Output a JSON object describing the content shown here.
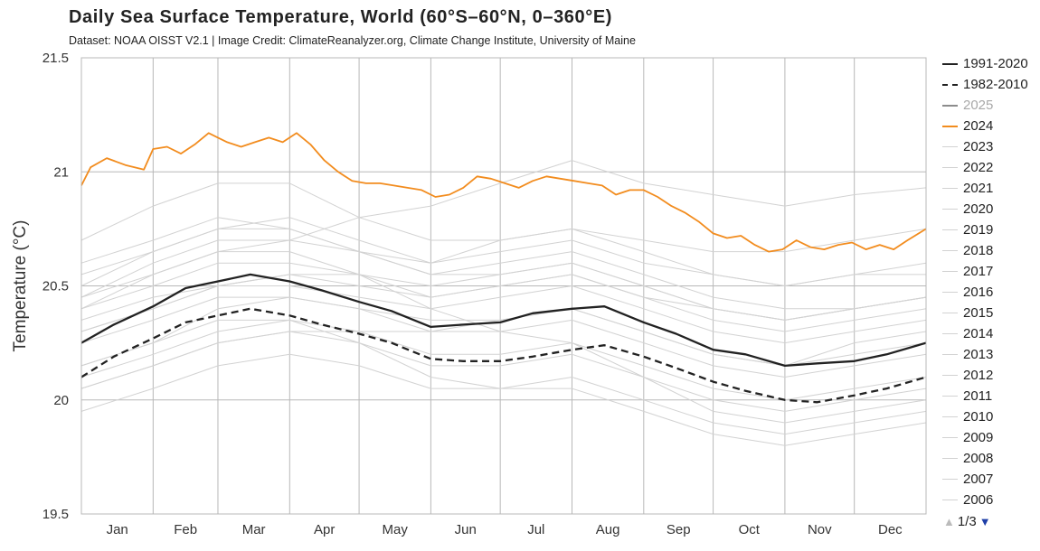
{
  "title": "Daily Sea Surface Temperature, World (60°S–60°N, 0–360°E)",
  "subtitle": "Dataset: NOAA OISST V2.1 | Image Credit: ClimateReanalyzer.org, Climate Change Institute, University of Maine",
  "colors": {
    "grid": "#b8b8b8",
    "axis_text": "#333333",
    "year_gray": "#d2d2d2",
    "mean": "#222222",
    "y2025": "#8c8c8c",
    "y2024": "#f28c1e",
    "pager_up": "#bbbbbb",
    "pager_down": "#1f3fa8"
  },
  "legend": {
    "items": [
      {
        "label": "1991-2020",
        "style": "solid",
        "color": "#222222"
      },
      {
        "label": "1982-2010",
        "style": "dashed",
        "color": "#222222"
      },
      {
        "label": "2025",
        "style": "solid",
        "color": "#8c8c8c",
        "text_color": "#a8a8a8"
      },
      {
        "label": "2024",
        "style": "solid",
        "color": "#f28c1e"
      },
      {
        "label": "2023",
        "style": "solid",
        "color": "#d2d2d2"
      },
      {
        "label": "2022",
        "style": "solid",
        "color": "#d2d2d2"
      },
      {
        "label": "2021",
        "style": "solid",
        "color": "#d2d2d2"
      },
      {
        "label": "2020",
        "style": "solid",
        "color": "#d2d2d2"
      },
      {
        "label": "2019",
        "style": "solid",
        "color": "#d2d2d2"
      },
      {
        "label": "2018",
        "style": "solid",
        "color": "#d2d2d2"
      },
      {
        "label": "2017",
        "style": "solid",
        "color": "#d2d2d2"
      },
      {
        "label": "2016",
        "style": "solid",
        "color": "#d2d2d2"
      },
      {
        "label": "2015",
        "style": "solid",
        "color": "#d2d2d2"
      },
      {
        "label": "2014",
        "style": "solid",
        "color": "#d2d2d2"
      },
      {
        "label": "2013",
        "style": "solid",
        "color": "#d2d2d2"
      },
      {
        "label": "2012",
        "style": "solid",
        "color": "#d2d2d2"
      },
      {
        "label": "2011",
        "style": "solid",
        "color": "#d2d2d2"
      },
      {
        "label": "2010",
        "style": "solid",
        "color": "#d2d2d2"
      },
      {
        "label": "2009",
        "style": "solid",
        "color": "#d2d2d2"
      },
      {
        "label": "2008",
        "style": "solid",
        "color": "#d2d2d2"
      },
      {
        "label": "2007",
        "style": "solid",
        "color": "#d2d2d2"
      },
      {
        "label": "2006",
        "style": "solid",
        "color": "#d2d2d2"
      }
    ],
    "pager": {
      "text": "1/3",
      "up": "▲",
      "down": "▼"
    }
  },
  "chart_data": {
    "type": "line",
    "ylabel": "Temperature (°C)",
    "xlabel": "",
    "ylim": [
      19.5,
      21.5
    ],
    "yticks": [
      19.5,
      20,
      20.5,
      21,
      21.5
    ],
    "xlim": [
      1,
      366
    ],
    "months": [
      "Jan",
      "Feb",
      "Mar",
      "Apr",
      "May",
      "Jun",
      "Jul",
      "Aug",
      "Sep",
      "Oct",
      "Nov",
      "Dec"
    ],
    "month_starts": [
      1,
      32,
      60,
      91,
      121,
      152,
      182,
      213,
      244,
      274,
      305,
      335
    ],
    "grid": true,
    "legend_position": "right",
    "series": [
      {
        "name": "1991-2020",
        "style": "solid",
        "color": "#222222",
        "x": [
          1,
          15,
          32,
          46,
          60,
          74,
          91,
          105,
          121,
          135,
          152,
          166,
          182,
          196,
          213,
          227,
          244,
          258,
          274,
          288,
          305,
          319,
          335,
          349,
          366
        ],
        "y": [
          20.25,
          20.33,
          20.41,
          20.49,
          20.52,
          20.55,
          20.52,
          20.48,
          20.43,
          20.39,
          20.32,
          20.33,
          20.34,
          20.38,
          20.4,
          20.41,
          20.34,
          20.29,
          20.22,
          20.2,
          20.15,
          20.16,
          20.17,
          20.2,
          20.25
        ]
      },
      {
        "name": "1982-2010",
        "style": "dashed",
        "color": "#222222",
        "x": [
          1,
          15,
          32,
          46,
          60,
          74,
          91,
          105,
          121,
          135,
          152,
          166,
          182,
          196,
          213,
          227,
          244,
          258,
          274,
          288,
          305,
          319,
          335,
          349,
          366
        ],
        "y": [
          20.1,
          20.19,
          20.27,
          20.34,
          20.37,
          20.4,
          20.37,
          20.33,
          20.29,
          20.25,
          20.18,
          20.17,
          20.17,
          20.19,
          20.22,
          20.24,
          20.19,
          20.14,
          20.08,
          20.04,
          20.0,
          19.99,
          20.02,
          20.05,
          20.1
        ]
      },
      {
        "name": "2024",
        "style": "solid",
        "color": "#f28c1e",
        "x": [
          1,
          5,
          12,
          20,
          28,
          32,
          38,
          44,
          50,
          56,
          60,
          64,
          70,
          76,
          82,
          88,
          94,
          100,
          106,
          112,
          118,
          124,
          130,
          136,
          142,
          148,
          154,
          160,
          166,
          172,
          178,
          184,
          190,
          196,
          202,
          208,
          214,
          220,
          226,
          232,
          238,
          244,
          250,
          256,
          262,
          268,
          274,
          280,
          286,
          292,
          298,
          304,
          310,
          316,
          322,
          328,
          334,
          340,
          346,
          352,
          358,
          366
        ],
        "y": [
          20.94,
          21.02,
          21.06,
          21.03,
          21.01,
          21.1,
          21.11,
          21.08,
          21.12,
          21.17,
          21.15,
          21.13,
          21.11,
          21.13,
          21.15,
          21.13,
          21.17,
          21.12,
          21.05,
          21.0,
          20.96,
          20.95,
          20.95,
          20.94,
          20.93,
          20.92,
          20.89,
          20.9,
          20.93,
          20.98,
          20.97,
          20.95,
          20.93,
          20.96,
          20.98,
          20.97,
          20.96,
          20.95,
          20.94,
          20.9,
          20.92,
          20.92,
          20.89,
          20.85,
          20.82,
          20.78,
          20.73,
          20.71,
          20.72,
          20.68,
          20.65,
          20.66,
          20.7,
          20.67,
          20.66,
          20.68,
          20.69,
          20.66,
          20.68,
          20.66,
          20.7,
          20.75
        ]
      },
      {
        "name": "2025",
        "style": "solid",
        "color": "#8c8c8c",
        "x": [],
        "y": []
      },
      {
        "name": "2023",
        "color": "#d2d2d2",
        "x": [
          1,
          32,
          60,
          91,
          121,
          152,
          182,
          213,
          244,
          274,
          305,
          335,
          366
        ],
        "y": [
          20.45,
          20.55,
          20.65,
          20.7,
          20.8,
          20.85,
          20.95,
          21.05,
          20.95,
          20.9,
          20.85,
          20.9,
          20.93
        ]
      },
      {
        "name": "2022",
        "color": "#d2d2d2",
        "x": [
          1,
          32,
          60,
          91,
          121,
          152,
          182,
          213,
          244,
          274,
          305,
          335,
          366
        ],
        "y": [
          20.3,
          20.4,
          20.5,
          20.55,
          20.5,
          20.45,
          20.5,
          20.55,
          20.45,
          20.35,
          20.3,
          20.35,
          20.4
        ]
      },
      {
        "name": "2021",
        "color": "#d2d2d2",
        "x": [
          1,
          32,
          60,
          91,
          121,
          152,
          182,
          213,
          244,
          274,
          305,
          335,
          366
        ],
        "y": [
          20.35,
          20.45,
          20.5,
          20.5,
          20.45,
          20.4,
          20.45,
          20.5,
          20.4,
          20.3,
          20.25,
          20.3,
          20.35
        ]
      },
      {
        "name": "2020",
        "color": "#d2d2d2",
        "x": [
          1,
          32,
          60,
          91,
          121,
          152,
          182,
          213,
          244,
          274,
          305,
          335,
          366
        ],
        "y": [
          20.6,
          20.7,
          20.8,
          20.75,
          20.65,
          20.55,
          20.6,
          20.65,
          20.55,
          20.45,
          20.4,
          20.4,
          20.45
        ]
      },
      {
        "name": "2019",
        "color": "#d2d2d2",
        "x": [
          1,
          32,
          60,
          91,
          121,
          152,
          182,
          213,
          244,
          274,
          305,
          335,
          366
        ],
        "y": [
          20.55,
          20.65,
          20.75,
          20.8,
          20.7,
          20.6,
          20.65,
          20.7,
          20.6,
          20.55,
          20.5,
          20.55,
          20.6
        ]
      },
      {
        "name": "2018",
        "color": "#d2d2d2",
        "x": [
          1,
          32,
          60,
          91,
          121,
          152,
          182,
          213,
          244,
          274,
          305,
          335,
          366
        ],
        "y": [
          20.4,
          20.5,
          20.6,
          20.6,
          20.55,
          20.45,
          20.5,
          20.55,
          20.45,
          20.4,
          20.35,
          20.4,
          20.45
        ]
      },
      {
        "name": "2017",
        "color": "#d2d2d2",
        "x": [
          1,
          32,
          60,
          91,
          121,
          152,
          182,
          213,
          244,
          274,
          305,
          335,
          366
        ],
        "y": [
          20.5,
          20.65,
          20.75,
          20.75,
          20.65,
          20.55,
          20.55,
          20.6,
          20.5,
          20.4,
          20.35,
          20.4,
          20.45
        ]
      },
      {
        "name": "2016",
        "color": "#d2d2d2",
        "x": [
          1,
          32,
          60,
          91,
          121,
          152,
          182,
          213,
          244,
          274,
          305,
          335,
          366
        ],
        "y": [
          20.7,
          20.85,
          20.95,
          20.95,
          20.8,
          20.7,
          20.7,
          20.75,
          20.65,
          20.55,
          20.5,
          20.55,
          20.55
        ]
      },
      {
        "name": "2015",
        "color": "#d2d2d2",
        "x": [
          1,
          32,
          60,
          91,
          121,
          152,
          182,
          213,
          244,
          274,
          305,
          335,
          366
        ],
        "y": [
          20.45,
          20.6,
          20.7,
          20.7,
          20.65,
          20.6,
          20.7,
          20.75,
          20.7,
          20.65,
          20.65,
          20.7,
          20.75
        ]
      },
      {
        "name": "2014",
        "color": "#d2d2d2",
        "x": [
          1,
          32,
          60,
          91,
          121,
          152,
          182,
          213,
          244,
          274,
          305,
          335,
          366
        ],
        "y": [
          20.3,
          20.4,
          20.5,
          20.55,
          20.55,
          20.5,
          20.55,
          20.6,
          20.5,
          20.4,
          20.35,
          20.4,
          20.45
        ]
      },
      {
        "name": "2013",
        "color": "#d2d2d2",
        "x": [
          1,
          32,
          60,
          91,
          121,
          152,
          182,
          213,
          244,
          274,
          305,
          335,
          366
        ],
        "y": [
          20.25,
          20.35,
          20.45,
          20.45,
          20.4,
          20.35,
          20.35,
          20.4,
          20.3,
          20.2,
          20.15,
          20.2,
          20.25
        ]
      },
      {
        "name": "2012",
        "color": "#d2d2d2",
        "x": [
          1,
          32,
          60,
          91,
          121,
          152,
          182,
          213,
          244,
          274,
          305,
          335,
          366
        ],
        "y": [
          20.15,
          20.25,
          20.4,
          20.45,
          20.4,
          20.3,
          20.3,
          20.35,
          20.25,
          20.15,
          20.1,
          20.15,
          20.2
        ]
      },
      {
        "name": "2011",
        "color": "#d2d2d2",
        "x": [
          1,
          32,
          60,
          91,
          121,
          152,
          182,
          213,
          244,
          274,
          305,
          335,
          366
        ],
        "y": [
          20.1,
          20.2,
          20.3,
          20.35,
          20.3,
          20.2,
          20.2,
          20.25,
          20.15,
          20.05,
          20.0,
          20.05,
          20.1
        ]
      },
      {
        "name": "2010",
        "color": "#d2d2d2",
        "x": [
          1,
          32,
          60,
          91,
          121,
          152,
          182,
          213,
          244,
          274,
          305,
          335,
          366
        ],
        "y": [
          20.4,
          20.55,
          20.65,
          20.65,
          20.55,
          20.4,
          20.3,
          20.25,
          20.1,
          19.95,
          19.9,
          19.95,
          20.0
        ]
      },
      {
        "name": "2009",
        "color": "#d2d2d2",
        "x": [
          1,
          32,
          60,
          91,
          121,
          152,
          182,
          213,
          244,
          274,
          305,
          335,
          366
        ],
        "y": [
          20.05,
          20.15,
          20.25,
          20.3,
          20.3,
          20.3,
          20.35,
          20.4,
          20.3,
          20.2,
          20.15,
          20.25,
          20.3
        ]
      },
      {
        "name": "2008",
        "color": "#d2d2d2",
        "x": [
          1,
          32,
          60,
          91,
          121,
          152,
          182,
          213,
          244,
          274,
          305,
          335,
          366
        ],
        "y": [
          19.95,
          20.05,
          20.15,
          20.2,
          20.15,
          20.05,
          20.05,
          20.1,
          20.0,
          19.9,
          19.85,
          19.9,
          19.95
        ]
      },
      {
        "name": "2007",
        "color": "#d2d2d2",
        "x": [
          1,
          32,
          60,
          91,
          121,
          152,
          182,
          213,
          244,
          274,
          305,
          335,
          366
        ],
        "y": [
          20.15,
          20.25,
          20.35,
          20.35,
          20.25,
          20.1,
          20.05,
          20.05,
          19.95,
          19.85,
          19.8,
          19.85,
          19.9
        ]
      },
      {
        "name": "2006",
        "color": "#d2d2d2",
        "x": [
          1,
          32,
          60,
          91,
          121,
          152,
          182,
          213,
          244,
          274,
          305,
          335,
          366
        ],
        "y": [
          20.05,
          20.15,
          20.25,
          20.3,
          20.25,
          20.15,
          20.15,
          20.2,
          20.1,
          20.0,
          19.95,
          20.0,
          20.05
        ]
      }
    ]
  }
}
